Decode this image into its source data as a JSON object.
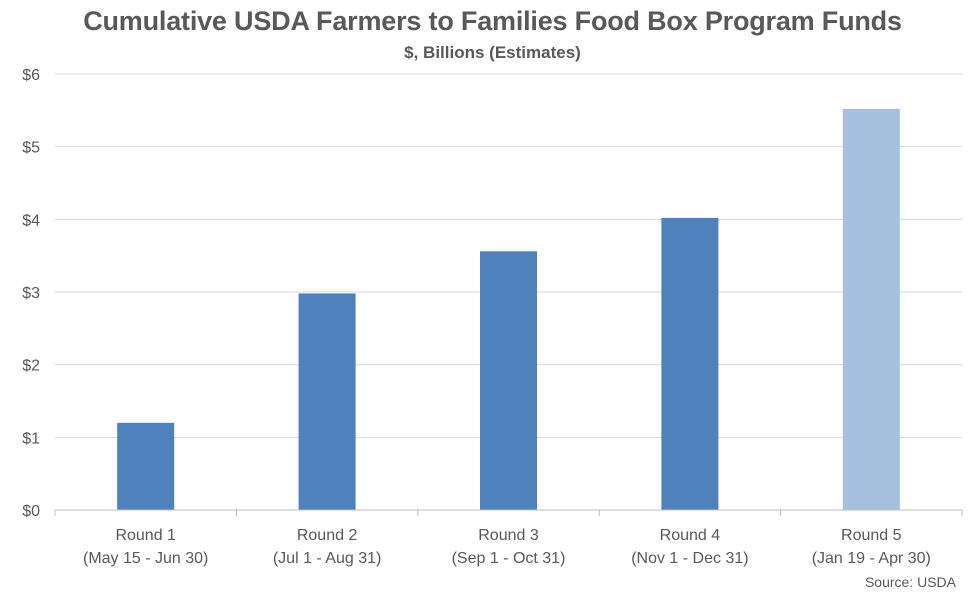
{
  "chart_data": {
    "type": "bar",
    "title": "Cumulative USDA Farmers to Families Food Box Program Funds",
    "subtitle": "$, Billions (Estimates)",
    "categories": [
      [
        "Round 1",
        "(May 15 - Jun 30)"
      ],
      [
        "Round 2",
        "(Jul 1 - Aug 31)"
      ],
      [
        "Round 3",
        "(Sep 1 - Oct 31)"
      ],
      [
        "Round 4",
        "(Nov 1 - Dec 31)"
      ],
      [
        "Round 5",
        "(Jan 19 - Apr 30)"
      ]
    ],
    "values": [
      1.2,
      2.98,
      3.56,
      4.02,
      5.52
    ],
    "bar_colors": [
      "#4f81bd",
      "#4f81bd",
      "#4f81bd",
      "#4f81bd",
      "#a7bfde"
    ],
    "y_ticks": [
      "$0",
      "$1",
      "$2",
      "$3",
      "$4",
      "$5",
      "$6"
    ],
    "ylim": [
      0,
      6
    ],
    "xlabel": "",
    "ylabel": "",
    "grid": true,
    "legend": "none",
    "source": "Source: USDA"
  },
  "colors": {
    "bar_primary": "#4f81bd",
    "bar_estimate": "#a7bfde",
    "gridline": "#d9d9d9",
    "text": "#595959"
  }
}
